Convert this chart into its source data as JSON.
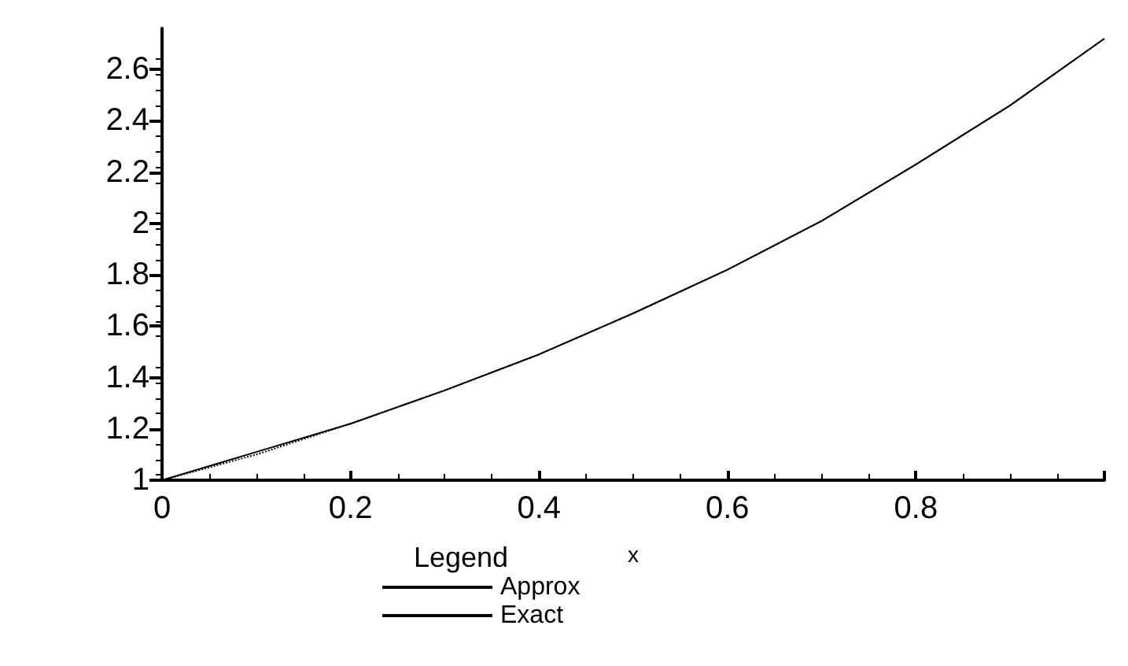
{
  "chart_data": {
    "type": "line",
    "xlabel": "x",
    "legend_title": "Legend",
    "legend": "bottom",
    "grid": false,
    "marker": "none",
    "xlim": [
      0,
      1
    ],
    "ylim": [
      1,
      2.76
    ],
    "xticks": [
      0,
      0.2,
      0.4,
      0.6,
      0.8,
      {
        "value": 1,
        "label": null
      }
    ],
    "yticks": [
      1,
      1.2,
      1.4,
      1.6,
      1.8,
      2,
      2.2,
      2.4,
      2.6
    ],
    "x": [
      0,
      0.1,
      0.2,
      0.3,
      0.4,
      0.5,
      0.6,
      0.7,
      0.8,
      0.9,
      1
    ],
    "series": [
      {
        "name": "Approx",
        "color": "#000000",
        "line_style": "dotted",
        "values": [
          1,
          1.1,
          1.22,
          1.35,
          1.49,
          1.65,
          1.82,
          2.01,
          2.23,
          2.46,
          2.72
        ]
      },
      {
        "name": "Exact",
        "color": "#000000",
        "line_style": "solid",
        "values": [
          1,
          1.11,
          1.22,
          1.35,
          1.49,
          1.65,
          1.82,
          2.01,
          2.23,
          2.46,
          2.72
        ]
      }
    ]
  }
}
